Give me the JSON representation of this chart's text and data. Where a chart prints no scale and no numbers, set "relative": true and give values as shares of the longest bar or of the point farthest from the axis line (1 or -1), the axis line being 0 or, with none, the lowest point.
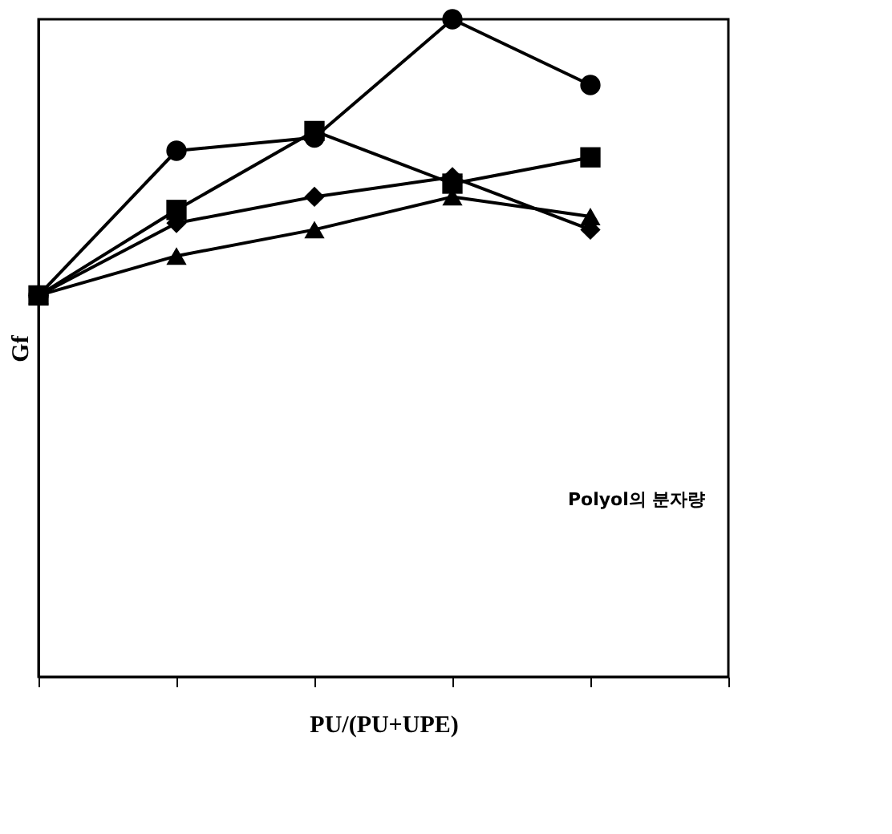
{
  "chart_data": {
    "type": "line",
    "relative": true,
    "xlabel": "PU/(PU+UPE)",
    "ylabel": "Gf",
    "annotations": [
      "Polyol의 분자량"
    ],
    "grid": false,
    "line_style": "solid",
    "categories": [
      null,
      null,
      null,
      null,
      null,
      null
    ],
    "series": [
      {
        "color": "#000000",
        "marker": "triangle",
        "values": [
          0.58,
          0.64,
          0.68,
          0.73,
          0.7,
          null
        ]
      },
      {
        "color": "#000000",
        "marker": "diamond",
        "values": [
          0.58,
          0.69,
          0.73,
          0.76,
          0.68,
          null
        ]
      },
      {
        "color": "#000000",
        "marker": "square",
        "values": [
          0.58,
          0.71,
          0.83,
          0.75,
          0.79,
          null
        ]
      },
      {
        "color": "#000000",
        "marker": "circle",
        "values": [
          0.58,
          0.8,
          0.82,
          1,
          0.9,
          null
        ]
      }
    ]
  }
}
